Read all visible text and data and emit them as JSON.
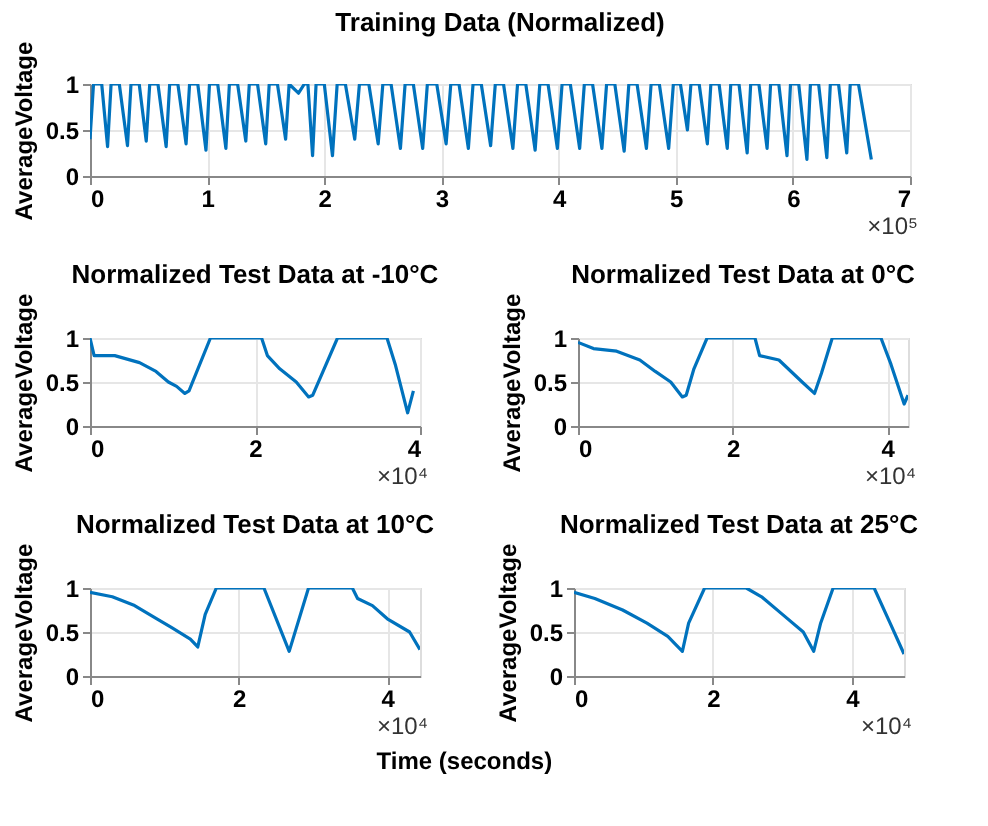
{
  "chart_data": [
    {
      "type": "line",
      "title": "Training Data (Normalized)",
      "ylabel": "AverageVoltage",
      "annotations": [
        "×10⁵"
      ],
      "grid": true,
      "xlim": [
        0,
        7
      ],
      "xticks": [
        0,
        1,
        2,
        3,
        4,
        5,
        6,
        7
      ],
      "ylim": [
        0,
        1
      ],
      "yticks": [
        0,
        0.5,
        1
      ],
      "series": [
        {
          "color": "#0072bd",
          "x": [
            0,
            0.03,
            0.1,
            0.15,
            0.18,
            0.25,
            0.32,
            0.35,
            0.42,
            0.48,
            0.51,
            0.58,
            0.65,
            0.68,
            0.75,
            0.82,
            0.85,
            0.92,
            0.99,
            1.02,
            1.09,
            1.16,
            1.19,
            1.26,
            1.33,
            1.36,
            1.43,
            1.5,
            1.53,
            1.6,
            1.67,
            1.7,
            1.78,
            1.83,
            1.86,
            1.9,
            1.93,
            2.0,
            2.07,
            2.11,
            2.18,
            2.26,
            2.3,
            2.38,
            2.46,
            2.5,
            2.57,
            2.65,
            2.69,
            2.76,
            2.84,
            2.88,
            2.96,
            3.04,
            3.08,
            3.15,
            3.23,
            3.27,
            3.34,
            3.42,
            3.46,
            3.53,
            3.61,
            3.65,
            3.72,
            3.8,
            3.84,
            3.91,
            3.99,
            4.03,
            4.1,
            4.18,
            4.22,
            4.29,
            4.37,
            4.41,
            4.48,
            4.56,
            4.6,
            4.67,
            4.75,
            4.79,
            4.86,
            4.94,
            4.98,
            5.04,
            5.1,
            5.13,
            5.2,
            5.27,
            5.3,
            5.37,
            5.44,
            5.47,
            5.54,
            5.61,
            5.64,
            5.71,
            5.78,
            5.81,
            5.88,
            5.95,
            5.98,
            6.05,
            6.12,
            6.15,
            6.22,
            6.29,
            6.32,
            6.39,
            6.46,
            6.49,
            6.56,
            6.67
          ],
          "values": [
            0.4,
            1,
            1,
            0.32,
            1,
            1,
            0.33,
            1,
            1,
            0.38,
            1,
            1,
            0.32,
            1,
            1,
            0.35,
            1,
            1,
            0.28,
            1,
            1,
            0.3,
            1,
            1,
            0.38,
            1,
            1,
            0.35,
            1,
            1,
            0.4,
            1,
            0.9,
            1,
            1,
            0.22,
            1,
            1,
            0.22,
            1,
            1,
            0.4,
            1,
            1,
            0.35,
            1,
            1,
            0.3,
            1,
            1,
            0.3,
            1,
            1,
            0.35,
            1,
            1,
            0.3,
            1,
            1,
            0.33,
            1,
            1,
            0.3,
            1,
            1,
            0.28,
            1,
            1,
            0.3,
            1,
            1,
            0.3,
            1,
            1,
            0.3,
            1,
            1,
            0.27,
            1,
            1,
            0.3,
            1,
            1,
            0.3,
            1,
            1,
            0.5,
            1,
            1,
            0.35,
            1,
            1,
            0.3,
            1,
            1,
            0.25,
            1,
            1,
            0.3,
            1,
            1,
            0.22,
            1,
            1,
            0.18,
            1,
            1,
            0.2,
            1,
            1,
            0.25,
            1,
            1,
            0.18
          ]
        }
      ]
    },
    {
      "type": "line",
      "title": "Normalized Test Data at -10°C",
      "ylabel": "AverageVoltage",
      "annotations": [
        "×10⁴"
      ],
      "grid": true,
      "xlim": [
        0,
        4
      ],
      "xticks": [
        0,
        2,
        4
      ],
      "ylim": [
        0,
        1
      ],
      "yticks": [
        0,
        0.5,
        1
      ],
      "series": [
        {
          "color": "#0072bd",
          "x": [
            0,
            0.05,
            0.3,
            0.6,
            0.8,
            0.95,
            1.05,
            1.15,
            1.2,
            1.46,
            2.08,
            2.15,
            2.3,
            2.5,
            2.65,
            2.7,
            3.0,
            3.6,
            3.7,
            3.85,
            3.92
          ],
          "values": [
            1,
            0.8,
            0.8,
            0.72,
            0.62,
            0.5,
            0.45,
            0.37,
            0.4,
            1,
            1,
            0.8,
            0.65,
            0.5,
            0.33,
            0.35,
            1,
            1,
            0.7,
            0.15,
            0.4
          ]
        }
      ]
    },
    {
      "type": "line",
      "title": "Normalized Test Data at 0°C",
      "ylabel": "AverageVoltage",
      "annotations": [
        "×10⁴"
      ],
      "grid": true,
      "xlim": [
        0,
        4.27
      ],
      "xticks": [
        0,
        2,
        4
      ],
      "ylim": [
        0,
        1
      ],
      "yticks": [
        0,
        0.5,
        1
      ],
      "series": [
        {
          "color": "#0072bd",
          "x": [
            0,
            0.2,
            0.5,
            0.8,
            1.0,
            1.2,
            1.35,
            1.4,
            1.5,
            1.67,
            2.29,
            2.35,
            2.6,
            2.9,
            3.06,
            3.15,
            3.29,
            3.92,
            4.05,
            4.22,
            4.27
          ],
          "values": [
            0.95,
            0.88,
            0.85,
            0.75,
            0.62,
            0.5,
            0.33,
            0.35,
            0.65,
            1,
            1,
            0.8,
            0.75,
            0.5,
            0.37,
            0.6,
            1,
            1,
            0.7,
            0.25,
            0.35
          ]
        }
      ]
    },
    {
      "type": "line",
      "title": "Normalized Test Data at 10°C",
      "ylabel": "AverageVoltage",
      "annotations": [
        "×10⁴"
      ],
      "grid": true,
      "xlim": [
        0,
        4.44
      ],
      "xticks": [
        0,
        2,
        4
      ],
      "ylim": [
        0,
        1
      ],
      "yticks": [
        0,
        0.5,
        1
      ],
      "series": [
        {
          "color": "#0072bd",
          "x": [
            0,
            0.3,
            0.6,
            0.9,
            1.1,
            1.35,
            1.45,
            1.55,
            1.7,
            2.34,
            2.68,
            2.94,
            3.53,
            3.6,
            3.8,
            4.0,
            4.3,
            4.44
          ],
          "values": [
            0.95,
            0.9,
            0.8,
            0.65,
            0.55,
            0.42,
            0.33,
            0.7,
            1,
            1,
            0.28,
            1,
            1,
            0.88,
            0.8,
            0.65,
            0.5,
            0.3
          ]
        }
      ]
    },
    {
      "type": "line",
      "title": "Normalized Test Data at 25°C",
      "ylabel": "AverageVoltage",
      "xlabel": "Time (seconds)",
      "annotations": [
        "×10⁴"
      ],
      "grid": true,
      "xlim": [
        0,
        4.75
      ],
      "xticks": [
        0,
        2,
        4
      ],
      "ylim": [
        0,
        1
      ],
      "yticks": [
        0,
        0.5,
        1
      ],
      "series": [
        {
          "color": "#0072bd",
          "x": [
            0,
            0.3,
            0.7,
            1.05,
            1.35,
            1.56,
            1.65,
            1.88,
            2.48,
            2.7,
            3.0,
            3.3,
            3.45,
            3.55,
            3.73,
            4.32,
            4.55,
            4.75
          ],
          "values": [
            0.95,
            0.88,
            0.75,
            0.6,
            0.45,
            0.28,
            0.6,
            1,
            1,
            0.9,
            0.7,
            0.5,
            0.28,
            0.6,
            1,
            1,
            0.6,
            0.25
          ]
        }
      ]
    }
  ]
}
